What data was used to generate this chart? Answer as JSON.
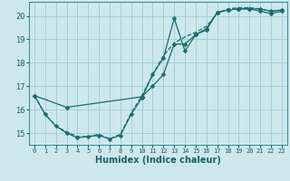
{
  "xlabel": "Humidex (Indice chaleur)",
  "bg_color": "#cde8ec",
  "grid_color": "#9dccd2",
  "line_color": "#1a6b6e",
  "xlim": [
    -0.5,
    23.5
  ],
  "ylim": [
    14.5,
    20.6
  ],
  "yticks": [
    15,
    16,
    17,
    18,
    19,
    20
  ],
  "xticks": [
    0,
    1,
    2,
    3,
    4,
    5,
    6,
    7,
    8,
    9,
    10,
    11,
    12,
    13,
    14,
    15,
    16,
    17,
    18,
    19,
    20,
    21,
    22,
    23
  ],
  "line1_x": [
    0,
    1,
    2,
    3,
    4,
    5,
    6,
    7,
    8,
    9,
    10,
    11,
    12,
    13,
    14,
    15,
    16,
    17,
    18,
    19,
    20,
    21,
    22,
    23
  ],
  "line1_y": [
    16.6,
    15.8,
    15.3,
    15.0,
    14.8,
    14.85,
    14.9,
    14.75,
    14.9,
    15.8,
    16.5,
    17.5,
    18.2,
    19.9,
    18.5,
    19.2,
    19.4,
    20.15,
    20.25,
    20.3,
    20.3,
    20.2,
    20.1,
    20.2
  ],
  "line2_x": [
    0,
    1,
    2,
    3,
    4,
    5,
    6,
    7,
    8,
    9,
    10,
    11,
    12,
    13,
    14,
    15,
    16,
    17,
    18,
    19,
    20,
    21,
    22,
    23
  ],
  "line2_y": [
    16.6,
    15.8,
    15.3,
    15.05,
    14.85,
    14.85,
    14.95,
    14.75,
    14.95,
    15.85,
    16.6,
    17.5,
    18.3,
    18.85,
    19.1,
    19.3,
    19.55,
    20.1,
    20.3,
    20.35,
    20.35,
    20.3,
    20.2,
    20.25
  ],
  "line3_x": [
    0,
    3,
    10,
    11,
    12,
    13,
    14,
    15,
    16,
    17,
    18,
    19,
    20,
    21,
    22,
    23
  ],
  "line3_y": [
    16.6,
    16.1,
    16.55,
    17.0,
    17.5,
    18.8,
    18.8,
    19.2,
    19.45,
    20.15,
    20.25,
    20.3,
    20.3,
    20.3,
    20.2,
    20.25
  ],
  "marker": "D",
  "markersize": 2.5,
  "linewidth": 0.9
}
